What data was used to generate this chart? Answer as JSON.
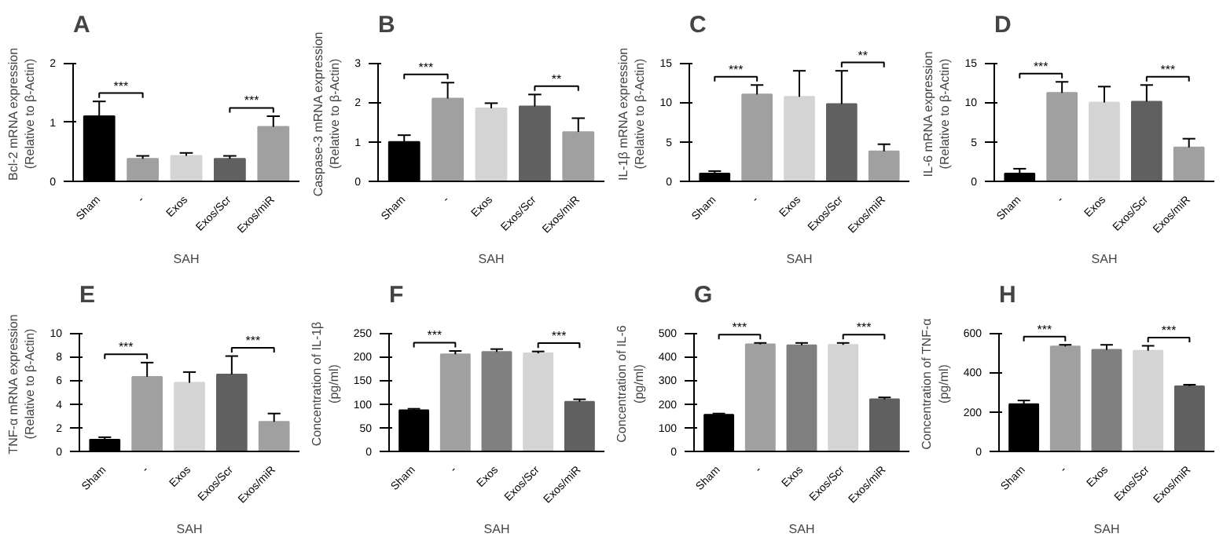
{
  "chart_data": [
    {
      "type": "bar",
      "title": "A",
      "ylabel": "Bcl-2 mRNA expression\n(Relative to β-Actin)",
      "xlabel": "SAH",
      "categories": [
        "Sham",
        "-",
        "Exos",
        "Exos/Scr",
        "Exos/miR"
      ],
      "values": [
        1.1,
        0.38,
        0.43,
        0.38,
        0.92
      ],
      "colors": [
        "#000000",
        "#a0a0a0",
        "#d4d4d4",
        "#606060",
        "#a0a0a0"
      ],
      "errors": [
        [
          1.1,
          1.35
        ],
        [
          0.38,
          0.43
        ],
        [
          0.43,
          0.48
        ],
        [
          0.38,
          0.43
        ],
        [
          0.92,
          1.1
        ]
      ],
      "ylim": [
        0,
        2
      ],
      "yticks": [
        0,
        1,
        2
      ],
      "annotations": [
        "***",
        "***"
      ],
      "grid": false
    },
    {
      "type": "bar",
      "title": "B",
      "ylabel": "Caspase-3 mRNA expression\n(Relative to β-Actin)",
      "xlabel": "SAH",
      "categories": [
        "Sham",
        "-",
        "Exos",
        "Exos/Scr",
        "Exos/miR"
      ],
      "values": [
        1.0,
        2.1,
        1.85,
        1.9,
        1.25
      ],
      "colors": [
        "#000000",
        "#a0a0a0",
        "#d4d4d4",
        "#606060",
        "#a0a0a0"
      ],
      "errors": [
        [
          1.0,
          1.17
        ],
        [
          2.1,
          2.5
        ],
        [
          1.85,
          1.98
        ],
        [
          1.9,
          2.2
        ],
        [
          1.25,
          1.6
        ]
      ],
      "ylim": [
        0,
        3
      ],
      "yticks": [
        0,
        1,
        2,
        3
      ],
      "annotations": [
        "***",
        "**"
      ],
      "grid": false
    },
    {
      "type": "bar",
      "title": "C",
      "ylabel": "IL-1β mRNA expression\n(Relative to β-Actin)",
      "xlabel": "SAH",
      "categories": [
        "Sham",
        "-",
        "Exos",
        "Exos/Scr",
        "Exos/miR"
      ],
      "values": [
        1.0,
        11.0,
        10.7,
        9.8,
        3.8
      ],
      "colors": [
        "#000000",
        "#a0a0a0",
        "#d4d4d4",
        "#606060",
        "#a0a0a0"
      ],
      "errors": [
        [
          1.0,
          1.3
        ],
        [
          11.0,
          12.2
        ],
        [
          10.7,
          14.0
        ],
        [
          9.8,
          14.0
        ],
        [
          3.8,
          4.7
        ]
      ],
      "ylim": [
        0,
        15
      ],
      "yticks": [
        0,
        5,
        10,
        15
      ],
      "annotations": [
        "***",
        "**"
      ],
      "grid": false
    },
    {
      "type": "bar",
      "title": "D",
      "ylabel": "IL-6 mRNA expression\n(Relative to β-Actin)",
      "xlabel": "SAH",
      "categories": [
        "Sham",
        "-",
        "Exos",
        "Exos/Scr",
        "Exos/miR"
      ],
      "values": [
        1.0,
        11.2,
        10.0,
        10.1,
        4.3
      ],
      "colors": [
        "#000000",
        "#a0a0a0",
        "#d4d4d4",
        "#606060",
        "#a0a0a0"
      ],
      "errors": [
        [
          1.0,
          1.6
        ],
        [
          11.2,
          12.6
        ],
        [
          10.0,
          12.0
        ],
        [
          10.1,
          12.2
        ],
        [
          4.3,
          5.4
        ]
      ],
      "ylim": [
        0,
        15
      ],
      "yticks": [
        0,
        5,
        10,
        15
      ],
      "annotations": [
        "***",
        "***"
      ],
      "grid": false
    },
    {
      "type": "bar",
      "title": "E",
      "ylabel": "TNF-α mRNA expression\n(Relative to β-Actin)",
      "xlabel": "SAH",
      "categories": [
        "Sham",
        "-",
        "Exos",
        "Exos/Scr",
        "Exos/miR"
      ],
      "values": [
        1.0,
        6.3,
        5.8,
        6.5,
        2.5
      ],
      "colors": [
        "#000000",
        "#a0a0a0",
        "#d4d4d4",
        "#606060",
        "#a0a0a0"
      ],
      "errors": [
        [
          1.0,
          1.2
        ],
        [
          6.3,
          7.5
        ],
        [
          5.8,
          6.7
        ],
        [
          6.5,
          8.05
        ],
        [
          2.5,
          3.2
        ]
      ],
      "ylim": [
        0,
        10
      ],
      "yticks": [
        0,
        2,
        4,
        6,
        8,
        10
      ],
      "annotations": [
        "***",
        "***"
      ],
      "grid": false
    },
    {
      "type": "bar",
      "title": "F",
      "ylabel": "Concentration of IL-1β\n(pg/ml)",
      "xlabel": "SAH",
      "categories": [
        "Sham",
        "-",
        "Exos",
        "Exos/Scr",
        "Exos/miR"
      ],
      "values": [
        87,
        205,
        210,
        207,
        105
      ],
      "colors": [
        "#000000",
        "#a0a0a0",
        "#808080",
        "#d4d4d4",
        "#606060"
      ],
      "errors": [
        [
          87,
          90
        ],
        [
          205,
          212
        ],
        [
          210,
          216
        ],
        [
          207,
          211
        ],
        [
          105,
          110
        ]
      ],
      "ylim": [
        0,
        250
      ],
      "yticks": [
        0,
        50,
        100,
        150,
        200,
        250
      ],
      "annotations": [
        "***",
        "***"
      ],
      "grid": false
    },
    {
      "type": "bar",
      "title": "G",
      "ylabel": "Concentration of IL-6\n(pg/ml)",
      "xlabel": "SAH",
      "categories": [
        "Sham",
        "-",
        "Exos",
        "Exos/Scr",
        "Exos/miR"
      ],
      "values": [
        155,
        452,
        448,
        450,
        220
      ],
      "colors": [
        "#000000",
        "#a0a0a0",
        "#808080",
        "#d4d4d4",
        "#606060"
      ],
      "errors": [
        [
          155,
          160
        ],
        [
          452,
          458
        ],
        [
          448,
          458
        ],
        [
          450,
          458
        ],
        [
          220,
          228
        ]
      ],
      "ylim": [
        0,
        500
      ],
      "yticks": [
        0,
        100,
        200,
        300,
        400,
        500
      ],
      "annotations": [
        "***",
        "***"
      ],
      "grid": false
    },
    {
      "type": "bar",
      "title": "H",
      "ylabel": "Concentration of TNF-α\n(pg/ml)",
      "xlabel": "SAH",
      "categories": [
        "Sham",
        "-",
        "Exos",
        "Exos/Scr",
        "Exos/miR"
      ],
      "values": [
        240,
        532,
        515,
        510,
        330
      ],
      "colors": [
        "#000000",
        "#a0a0a0",
        "#808080",
        "#d4d4d4",
        "#606060"
      ],
      "errors": [
        [
          240,
          258
        ],
        [
          532,
          540
        ],
        [
          515,
          540
        ],
        [
          510,
          535
        ],
        [
          330,
          338
        ]
      ],
      "ylim": [
        0,
        600
      ],
      "yticks": [
        0,
        200,
        400,
        600
      ],
      "annotations": [
        "***",
        "***"
      ],
      "grid": false
    }
  ]
}
